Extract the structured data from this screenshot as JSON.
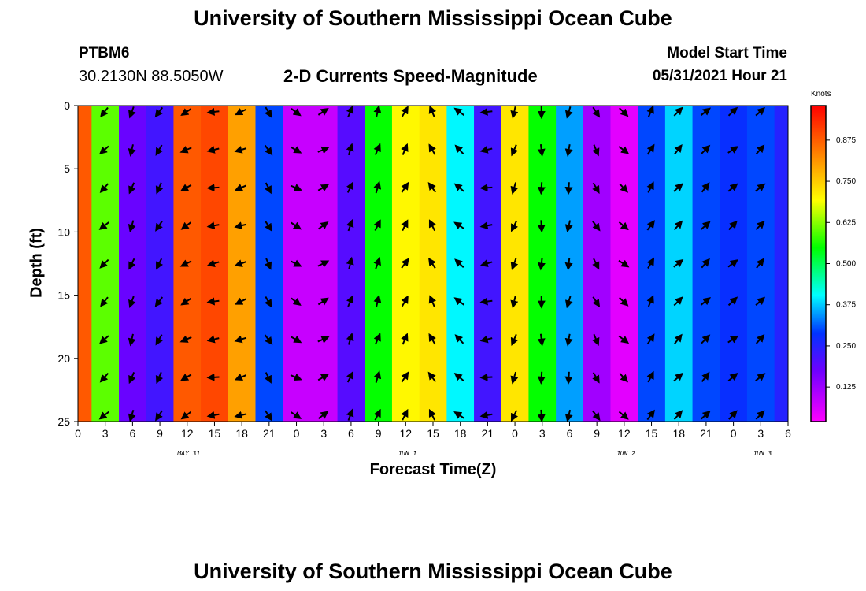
{
  "page": {
    "title_top": "University of Southern Mississippi Ocean Cube",
    "title_bottom": "University of Southern Mississippi Ocean Cube",
    "station_id": "PTBM6",
    "station_coords": "30.2130N  88.5050W",
    "plot_title": "2-D Currents Speed-Magnitude",
    "model_start_label": "Model Start Time",
    "model_start_value": "05/31/2021 Hour 21"
  },
  "chart_data": {
    "type": "heatmap",
    "title": "2-D Currents Speed-Magnitude",
    "xlabel": "Forecast Time(Z)",
    "ylabel": "Depth (ft)",
    "x_tick_labels": [
      "0",
      "3",
      "6",
      "9",
      "12",
      "15",
      "18",
      "21",
      "0",
      "3",
      "6",
      "9",
      "12",
      "15",
      "18",
      "21",
      "0",
      "3",
      "6",
      "9",
      "12",
      "15",
      "18",
      "21",
      "0",
      "3",
      "6"
    ],
    "x_range_hours": [
      0,
      78
    ],
    "date_labels": [
      {
        "label": "MAY 31",
        "hour": 12
      },
      {
        "label": "JUN 1",
        "hour": 36
      },
      {
        "label": "JUN 2",
        "hour": 60
      },
      {
        "label": "JUN 3",
        "hour": 75
      }
    ],
    "y_ticks": [
      0,
      5,
      10,
      15,
      20,
      25
    ],
    "y_range": [
      0,
      25
    ],
    "colorbar": {
      "unit": "Knots",
      "labels": [
        "0.875",
        "0.750",
        "0.625",
        "0.500",
        "0.375",
        "0.250",
        "0.125"
      ],
      "label_values": [
        0.875,
        0.75,
        0.625,
        0.5,
        0.375,
        0.25,
        0.125
      ],
      "range": [
        0.02,
        0.98
      ]
    },
    "speed_bands": [
      {
        "hour": 0,
        "value": 0.88
      },
      {
        "hour": 3,
        "value": 0.6
      },
      {
        "hour": 6,
        "value": 0.18
      },
      {
        "hour": 9,
        "value": 0.22
      },
      {
        "hour": 12,
        "value": 0.88
      },
      {
        "hour": 15,
        "value": 0.9
      },
      {
        "hour": 18,
        "value": 0.8
      },
      {
        "hour": 21,
        "value": 0.3
      },
      {
        "hour": 24,
        "value": 0.08
      },
      {
        "hour": 27,
        "value": 0.08
      },
      {
        "hour": 30,
        "value": 0.2
      },
      {
        "hour": 33,
        "value": 0.55
      },
      {
        "hour": 36,
        "value": 0.7
      },
      {
        "hour": 39,
        "value": 0.72
      },
      {
        "hour": 42,
        "value": 0.4
      },
      {
        "hour": 45,
        "value": 0.22
      },
      {
        "hour": 48,
        "value": 0.72
      },
      {
        "hour": 51,
        "value": 0.55
      },
      {
        "hour": 54,
        "value": 0.35
      },
      {
        "hour": 57,
        "value": 0.12
      },
      {
        "hour": 60,
        "value": 0.05
      },
      {
        "hour": 63,
        "value": 0.3
      },
      {
        "hour": 66,
        "value": 0.38
      },
      {
        "hour": 69,
        "value": 0.3
      },
      {
        "hour": 72,
        "value": 0.28
      },
      {
        "hour": 75,
        "value": 0.3
      },
      {
        "hour": 78,
        "value": 0.25
      }
    ],
    "vector_hours": [
      3,
      6,
      9,
      12,
      15,
      18,
      21,
      24,
      27,
      30,
      33,
      36,
      39,
      42,
      45,
      48,
      51,
      54,
      57,
      60,
      63,
      66,
      69,
      72,
      75
    ],
    "vector_depths": [
      0,
      3,
      6,
      9,
      12,
      15,
      18,
      21,
      24
    ],
    "vector_directions_deg": [
      225,
      200,
      210,
      240,
      260,
      250,
      150,
      120,
      60,
      20,
      20,
      30,
      330,
      310,
      260,
      200,
      180,
      190,
      150,
      130,
      30,
      45,
      45,
      50,
      45
    ]
  }
}
